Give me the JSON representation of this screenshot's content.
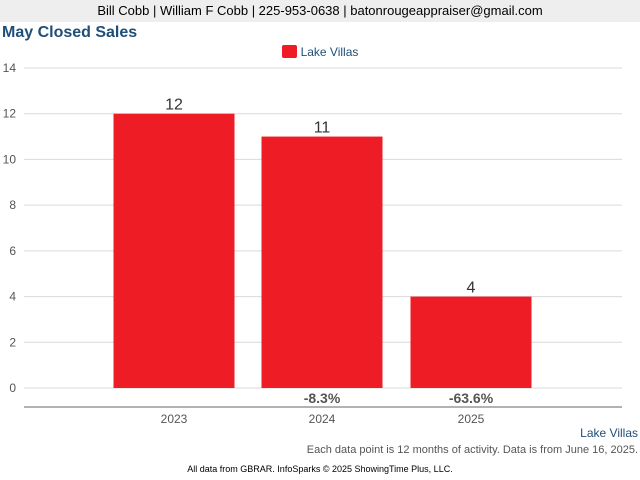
{
  "header": {
    "contact": "Bill Cobb | William F Cobb | 225-953-0638 | batonrougeappraiser@gmail.com"
  },
  "chart_data": {
    "type": "bar",
    "title": "May Closed Sales",
    "categories": [
      "2023",
      "2024",
      "2025"
    ],
    "series": [
      {
        "name": "Lake Villas",
        "values": [
          12,
          11,
          4
        ],
        "color": "#ee1c25"
      }
    ],
    "data_labels": [
      "12",
      "11",
      "4"
    ],
    "change_labels": [
      "",
      "-8.3%",
      "-63.6%"
    ],
    "ylim": [
      0,
      14
    ],
    "yticks": [
      0,
      2,
      4,
      6,
      8,
      10,
      12,
      14
    ],
    "grid": true,
    "legend_position": "top-center"
  },
  "footer": {
    "series_label": "Lake Villas",
    "note": "Each data point is 12 months of activity. Data is from June 16, 2025.",
    "source": "All data from GBRAR. InfoSparks © 2025 ShowingTime Plus, LLC."
  }
}
